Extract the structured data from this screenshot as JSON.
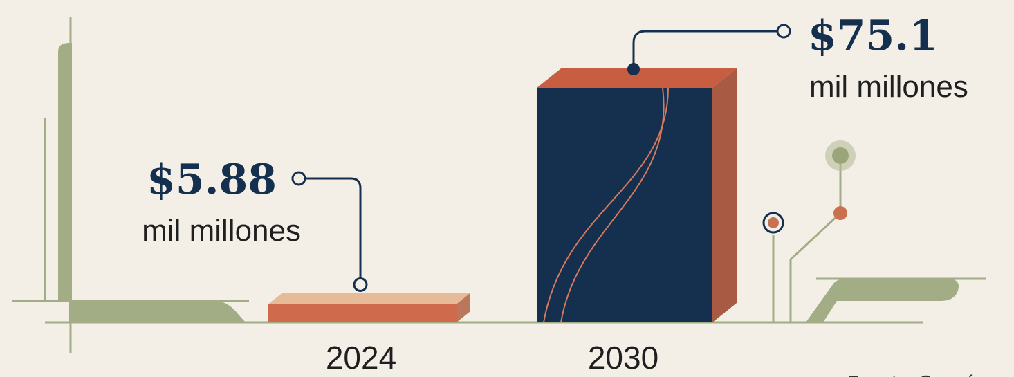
{
  "chart_data": {
    "type": "bar3d",
    "categories": [
      "2024",
      "2030"
    ],
    "values": [
      5.88,
      75.1
    ],
    "value_labels": [
      "$5.88",
      "$75.1"
    ],
    "unit": "mil millones",
    "source": "Fuente: Cognós",
    "colors": {
      "front": [
        "#cf6a4c",
        "#15304e"
      ],
      "top": [
        "#e8bb98",
        "#c75d41"
      ],
      "side": [
        "#b9785c",
        "#a95a42"
      ]
    }
  }
}
